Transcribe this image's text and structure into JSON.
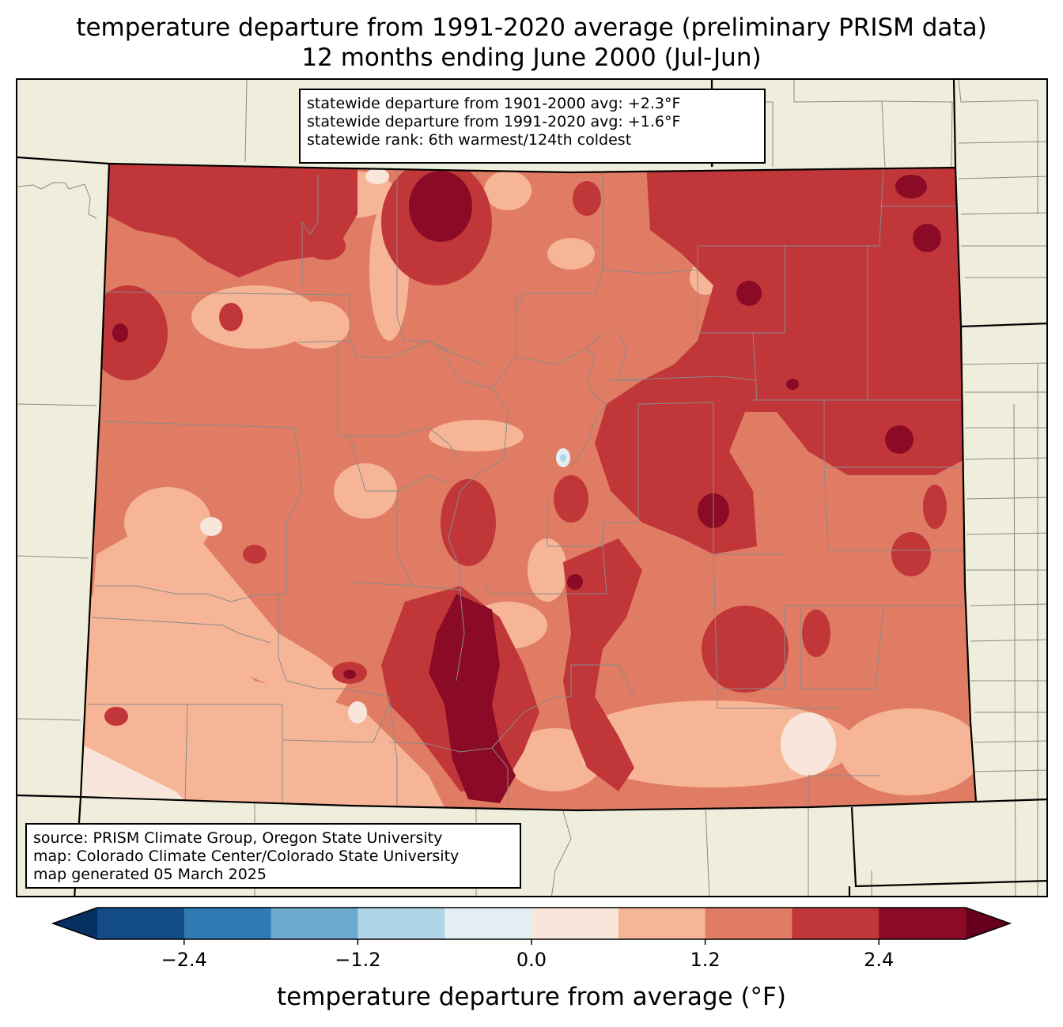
{
  "title": {
    "line1": "temperature departure from 1991-2020 average (preliminary PRISM data)",
    "line2": "12 months ending June 2000 (Jul-Jun)"
  },
  "stats": {
    "line1": "statewide departure from 1901-2000 avg: +2.3°F",
    "line2": "statewide departure from 1991-2020 avg: +1.6°F",
    "line3": "statewide rank: 6th warmest/124th coldest"
  },
  "source": {
    "line1": "source: PRISM Climate Group, Oregon State University",
    "line2": "map: Colorado Climate Center/Colorado State University",
    "line3": "map generated 05 March 2025"
  },
  "colorbar": {
    "label": "temperature departure from average (°F)",
    "ticks": [
      "−2.4",
      "−1.2",
      "0.0",
      "1.2",
      "2.4"
    ],
    "tick_values": [
      -2.4,
      -1.2,
      0.0,
      1.2,
      2.4
    ],
    "bounds": [
      -3.0,
      3.0
    ],
    "step": 0.6,
    "colors": [
      "#053061",
      "#134b87",
      "#2f79b5",
      "#6ba9cf",
      "#b0d5e6",
      "#e3eef3",
      "#f9e6da",
      "#f7b598",
      "#e07c63",
      "#c13639",
      "#8b0b26",
      "#67001f"
    ]
  },
  "map_colors": {
    "land": "#efeddb",
    "base": "#e07c63",
    "light": "#f7b598",
    "pale": "#f9e6da",
    "red": "#c13639",
    "dark": "#8b0b26",
    "blue": "#b0d5e6"
  }
}
